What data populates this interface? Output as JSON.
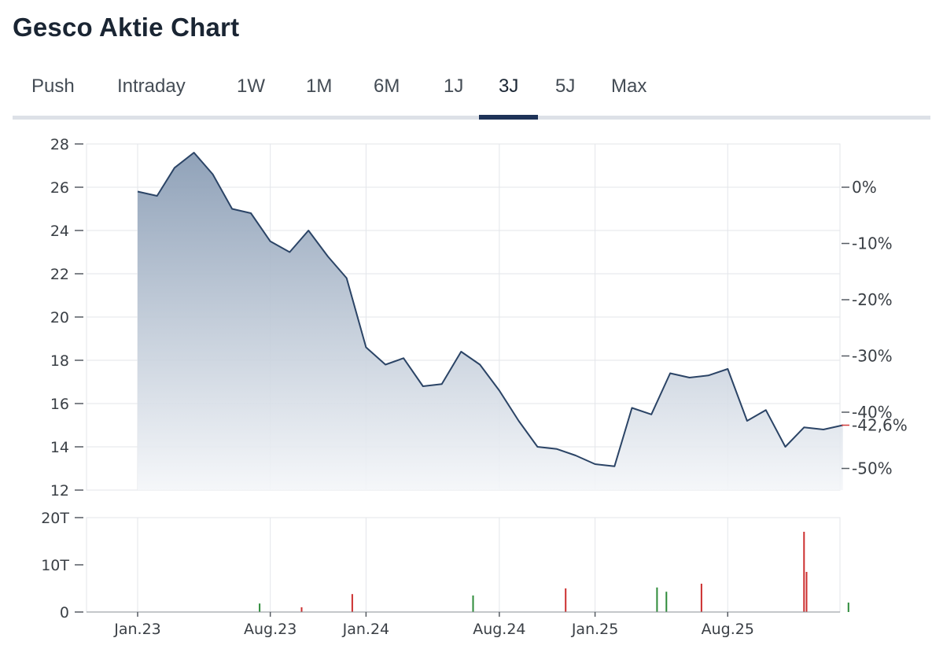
{
  "page": {
    "title": "Gesco Aktie Chart"
  },
  "tabs": [
    {
      "label": "Push",
      "active": false
    },
    {
      "label": "Intraday",
      "active": false
    },
    {
      "label": "1W",
      "active": false
    },
    {
      "label": "1M",
      "active": false
    },
    {
      "label": "6M",
      "active": false
    },
    {
      "label": "1J",
      "active": false
    },
    {
      "label": "3J",
      "active": true
    },
    {
      "label": "5J",
      "active": false
    },
    {
      "label": "Max",
      "active": false
    }
  ],
  "colors": {
    "line": "#2b4466",
    "fill_top": "#8a9db5",
    "fill_bottom": "#f4f6f9",
    "grid": "#e3e6ea",
    "volume_up": "#2e8b3a",
    "volume_down": "#cc2f2f",
    "current": "#d33b3b",
    "accent": "#1e3358"
  },
  "chart_data": {
    "type": "area",
    "title": "Gesco Aktie Chart",
    "x": [
      "2023-01-01",
      "2023-02-01",
      "2023-03-01",
      "2023-04-01",
      "2023-05-01",
      "2023-06-01",
      "2023-07-01",
      "2023-08-01",
      "2023-09-01",
      "2023-10-01",
      "2023-11-01",
      "2023-12-01",
      "2024-01-01",
      "2024-02-01",
      "2024-03-01",
      "2024-04-01",
      "2024-05-01",
      "2024-06-01",
      "2024-07-01",
      "2024-08-01",
      "2024-09-01",
      "2024-10-01",
      "2024-11-01",
      "2024-12-01",
      "2025-01-01",
      "2025-02-01",
      "2025-03-01",
      "2025-04-01",
      "2025-05-01",
      "2025-06-01",
      "2025-07-01",
      "2025-08-01",
      "2025-09-01",
      "2025-10-01",
      "2025-11-01",
      "2025-12-01",
      "2026-01-01",
      "2026-02-01"
    ],
    "series": [
      {
        "values": [
          25.8,
          25.6,
          26.9,
          27.6,
          26.6,
          25.0,
          24.8,
          23.5,
          23.0,
          24.0,
          22.8,
          21.8,
          18.6,
          17.8,
          18.1,
          16.8,
          16.9,
          18.4,
          17.8,
          16.6,
          15.2,
          14.0,
          13.9,
          13.6,
          13.2,
          13.1,
          15.8,
          15.5,
          17.4,
          17.2,
          17.3,
          17.6,
          15.2,
          15.7,
          14.0,
          14.9,
          14.8,
          15.0
        ]
      }
    ],
    "y_left": {
      "ticks": [
        12,
        14,
        16,
        18,
        20,
        22,
        24,
        26,
        28
      ],
      "ylim": [
        12,
        28
      ]
    },
    "y_right_pct": {
      "labels": [
        "0%",
        "-10%",
        "-20%",
        "-30%",
        "-40%",
        "-50%"
      ],
      "reference_price": 26.0
    },
    "current_change_label": "-42,6%",
    "xticks": [
      {
        "label": "Jan.23",
        "date": "2023-01-01"
      },
      {
        "label": "Aug.23",
        "date": "2023-08-01"
      },
      {
        "label": "Jan.24",
        "date": "2024-01-01"
      },
      {
        "label": "Aug.24",
        "date": "2024-08-01"
      },
      {
        "label": "Jan.25",
        "date": "2025-01-01"
      },
      {
        "label": "Aug.25",
        "date": "2025-08-01"
      }
    ],
    "volume": {
      "yticks": [
        {
          "label": "20T",
          "value": 20000
        },
        {
          "label": "10T",
          "value": 10000
        },
        {
          "label": "0",
          "value": 0
        }
      ],
      "bars": [
        {
          "x": "2023-07-15",
          "value": 1800,
          "dir": "up"
        },
        {
          "x": "2023-09-20",
          "value": 1000,
          "dir": "down"
        },
        {
          "x": "2023-12-10",
          "value": 3800,
          "dir": "down"
        },
        {
          "x": "2024-06-20",
          "value": 3500,
          "dir": "up"
        },
        {
          "x": "2024-11-15",
          "value": 5000,
          "dir": "down"
        },
        {
          "x": "2025-04-10",
          "value": 5200,
          "dir": "up"
        },
        {
          "x": "2025-04-25",
          "value": 4300,
          "dir": "up"
        },
        {
          "x": "2025-06-20",
          "value": 6000,
          "dir": "down"
        },
        {
          "x": "2025-12-01",
          "value": 17000,
          "dir": "down"
        },
        {
          "x": "2025-12-05",
          "value": 8500,
          "dir": "down"
        },
        {
          "x": "2026-02-10",
          "value": 2000,
          "dir": "up"
        }
      ]
    }
  }
}
